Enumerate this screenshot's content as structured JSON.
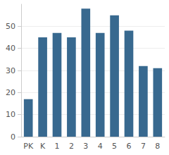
{
  "chart_data": {
    "type": "bar",
    "categories": [
      "PK",
      "K",
      "1",
      "2",
      "3",
      "4",
      "5",
      "6",
      "7",
      "8"
    ],
    "values": [
      17,
      45,
      47,
      45,
      58,
      47,
      55,
      48,
      32,
      31
    ],
    "color": "#38698f",
    "ylim": [
      0,
      60
    ],
    "yticks": [
      0,
      10,
      20,
      30,
      40,
      50
    ],
    "grid": true
  }
}
